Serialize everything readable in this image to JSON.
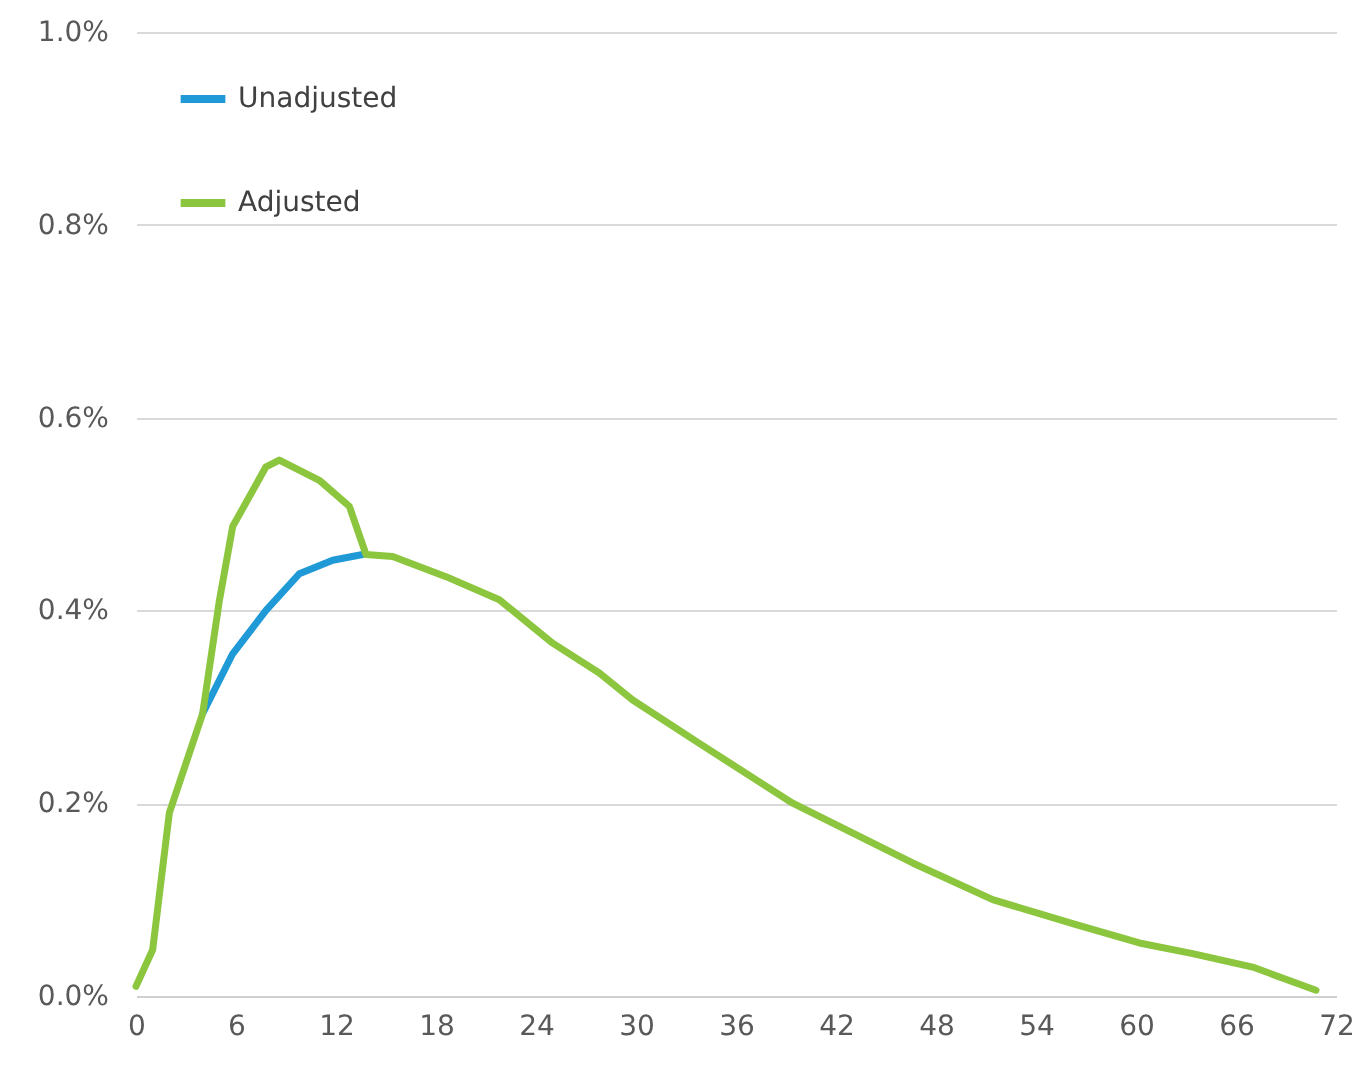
{
  "chart_data": {
    "type": "line",
    "xlim": [
      0,
      72
    ],
    "xticks": [
      0,
      6,
      12,
      18,
      24,
      30,
      36,
      42,
      48,
      54,
      60,
      66,
      72
    ],
    "ylim": [
      0,
      1.0
    ],
    "yticks": [
      {
        "value": 0,
        "label": "0.0%"
      },
      {
        "value": 0.2,
        "label": "0.2%"
      },
      {
        "value": 0.4,
        "label": "0.4%"
      },
      {
        "value": 0.6,
        "label": "0.6%"
      },
      {
        "value": 0.8,
        "label": "0.8%"
      },
      {
        "value": 1.0,
        "label": "1.0%"
      }
    ],
    "grid": "y",
    "legend": "top left",
    "marker": "none",
    "line_style": "solid",
    "series": [
      {
        "name": "Unadjusted",
        "color": "#1f9ad6",
        "x": [
          4,
          5.8,
          7.8,
          9.8,
          11.8,
          13.6
        ],
        "values": [
          0.293,
          0.355,
          0.4,
          0.438,
          0.452,
          0.458
        ]
      },
      {
        "name": "Adjusted",
        "color": "#8cc63f",
        "x": [
          0,
          1,
          2,
          4,
          5,
          5.8,
          7.8,
          8.6,
          11,
          12.8,
          13.8,
          15.4,
          18.6,
          21.8,
          25,
          27.8,
          29.8,
          33.8,
          39.4,
          46.6,
          51.4,
          56.2,
          60.2,
          63.4,
          67,
          70.8
        ],
        "values": [
          0.01,
          0.048,
          0.19,
          0.293,
          0.41,
          0.487,
          0.549,
          0.556,
          0.535,
          0.508,
          0.458,
          0.456,
          0.435,
          0.411,
          0.366,
          0.335,
          0.307,
          0.262,
          0.2,
          0.138,
          0.1,
          0.075,
          0.055,
          0.044,
          0.03,
          0.006
        ]
      }
    ]
  }
}
